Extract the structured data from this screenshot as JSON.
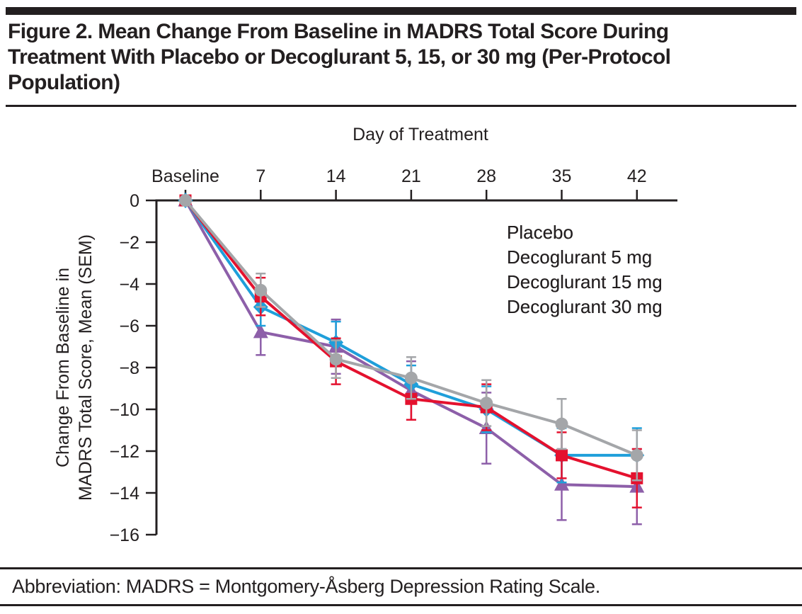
{
  "header": {
    "title_lines": [
      "Figure 2. Mean Change From Baseline in MADRS Total Score During",
      "Treatment With Placebo or Decoglurant 5, 15, or 30 mg (Per-Protocol",
      "Population)"
    ]
  },
  "chart_data": {
    "type": "line",
    "title": "",
    "xlabel": "Day of Treatment",
    "ylabel_lines": [
      "Change From Baseline in",
      "MADRS Total Score, Mean (SEM)"
    ],
    "categories": [
      "Baseline",
      "7",
      "14",
      "21",
      "28",
      "35",
      "42"
    ],
    "yticks": [
      0,
      -2,
      -4,
      -6,
      -8,
      -10,
      -12,
      -14,
      -16
    ],
    "ylim": [
      -16,
      0
    ],
    "grid": false,
    "legend_position": "upper right",
    "error_bars": "SEM",
    "axis_color": "#231f20",
    "series": [
      {
        "name": "Placebo",
        "marker": "circle",
        "color": "#a4a6a9",
        "values": [
          0,
          -4.3,
          -7.6,
          -8.5,
          -9.7,
          -10.7,
          -12.2
        ],
        "sem": [
          0,
          0.8,
          0.9,
          1.0,
          1.1,
          1.2,
          1.2
        ]
      },
      {
        "name": "Decoglurant 5 mg",
        "marker": "square",
        "color": "#e4112e",
        "values": [
          0,
          -4.6,
          -7.7,
          -9.5,
          -9.9,
          -12.2,
          -13.3
        ],
        "sem": [
          0,
          0.9,
          1.1,
          1.0,
          1.1,
          1.1,
          1.4
        ]
      },
      {
        "name": "Decoglurant 15 mg",
        "marker": "diamond",
        "color": "#1f9fda",
        "values": [
          0,
          -5.1,
          -6.8,
          -8.8,
          -10.0,
          -12.2,
          -12.2
        ],
        "sem": [
          0,
          0.9,
          1.0,
          0.9,
          1.1,
          1.3,
          1.3
        ]
      },
      {
        "name": "Decoglurant 30 mg",
        "marker": "triangle",
        "color": "#8d5fa9",
        "values": [
          0,
          -6.3,
          -7.0,
          -9.1,
          -10.9,
          -13.6,
          -13.7
        ],
        "sem": [
          0,
          1.1,
          1.3,
          1.4,
          1.7,
          1.7,
          1.8
        ]
      }
    ]
  },
  "footer": {
    "text": "Abbreviation: MADRS = Montgomery-Åsberg Depression Rating Scale."
  }
}
